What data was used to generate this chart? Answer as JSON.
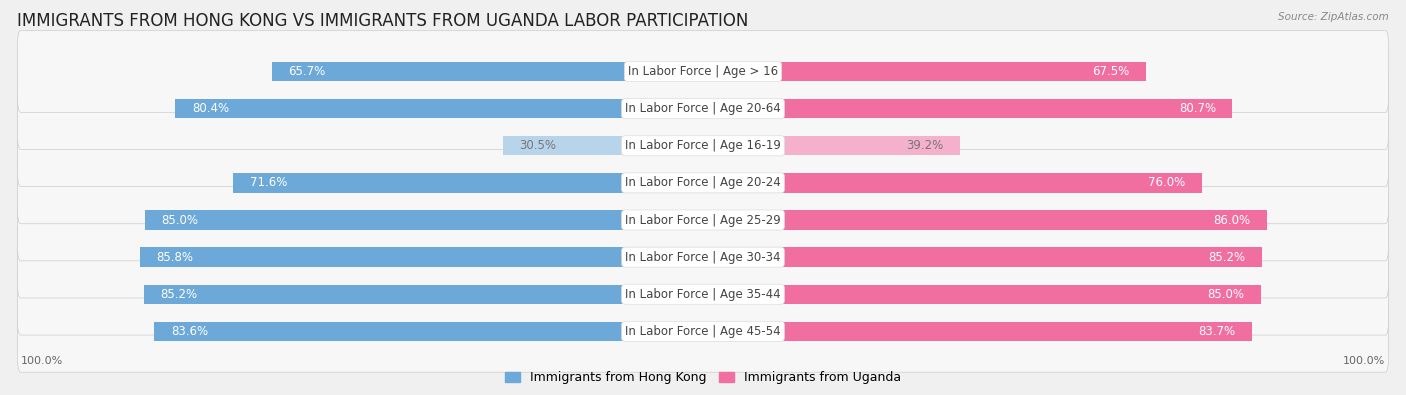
{
  "title": "IMMIGRANTS FROM HONG KONG VS IMMIGRANTS FROM UGANDA LABOR PARTICIPATION",
  "source": "Source: ZipAtlas.com",
  "categories": [
    "In Labor Force | Age > 16",
    "In Labor Force | Age 20-64",
    "In Labor Force | Age 16-19",
    "In Labor Force | Age 20-24",
    "In Labor Force | Age 25-29",
    "In Labor Force | Age 30-34",
    "In Labor Force | Age 35-44",
    "In Labor Force | Age 45-54"
  ],
  "hong_kong_values": [
    65.7,
    80.4,
    30.5,
    71.6,
    85.0,
    85.8,
    85.2,
    83.6
  ],
  "uganda_values": [
    67.5,
    80.7,
    39.2,
    76.0,
    86.0,
    85.2,
    85.0,
    83.7
  ],
  "is_light": [
    false,
    false,
    true,
    false,
    false,
    false,
    false,
    false
  ],
  "hong_kong_color": "#6ca8d8",
  "uganda_color": "#f06fa0",
  "hong_kong_color_light": "#b8d4eb",
  "uganda_color_light": "#f5b0cc",
  "title_fontsize": 12,
  "label_fontsize": 8.5,
  "value_fontsize": 8.5,
  "legend_fontsize": 9
}
